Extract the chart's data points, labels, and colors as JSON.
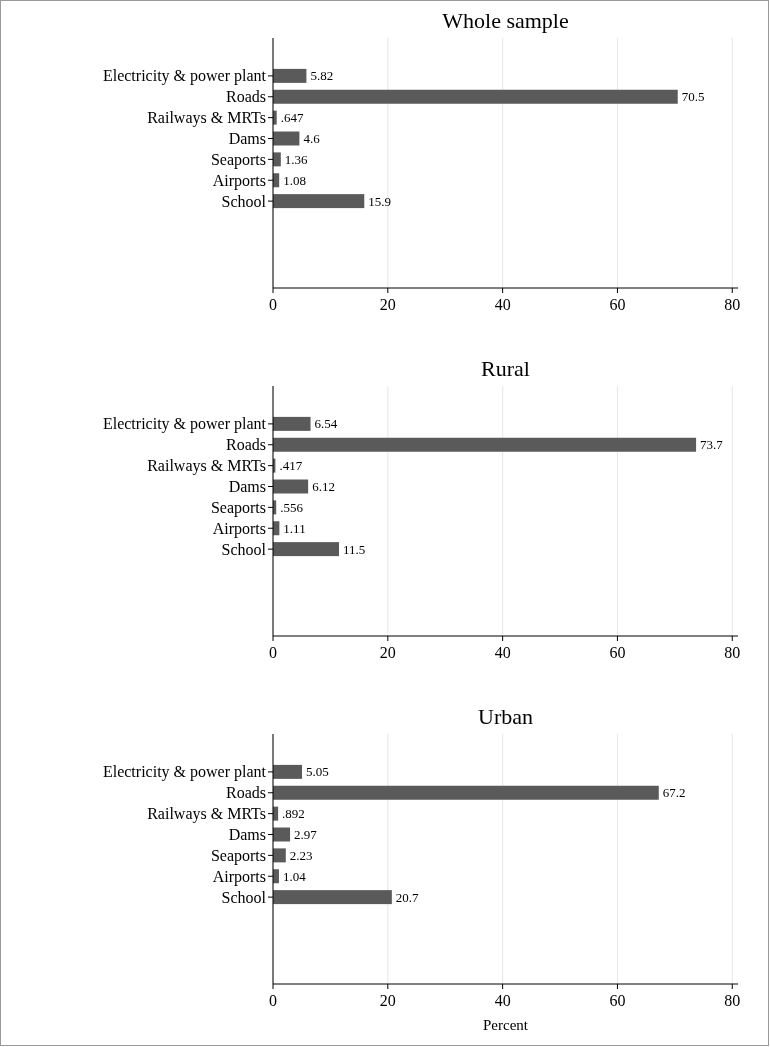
{
  "chart_data": [
    {
      "type": "bar",
      "orientation": "horizontal",
      "title": "Whole sample",
      "categories": [
        "Electricity & power plant",
        "Roads",
        "Railways & MRTs",
        "Dams",
        "Seaports",
        "Airports",
        "School"
      ],
      "values": [
        5.82,
        70.5,
        0.647,
        4.6,
        1.36,
        1.08,
        15.9
      ],
      "value_labels": [
        "5.82",
        "70.5",
        ".647",
        "4.6",
        "1.36",
        "1.08",
        "15.9"
      ],
      "color": "#5a5a5a",
      "xlim": [
        0,
        81
      ],
      "xticks": [
        0,
        20,
        40,
        60,
        80
      ],
      "grid": "x"
    },
    {
      "type": "bar",
      "orientation": "horizontal",
      "title": "Rural",
      "categories": [
        "Electricity & power plant",
        "Roads",
        "Railways & MRTs",
        "Dams",
        "Seaports",
        "Airports",
        "School"
      ],
      "values": [
        6.54,
        73.7,
        0.417,
        6.12,
        0.556,
        1.11,
        11.5
      ],
      "value_labels": [
        "6.54",
        "73.7",
        ".417",
        "6.12",
        ".556",
        "1.11",
        "11.5"
      ],
      "color": "#5a5a5a",
      "xlim": [
        0,
        81
      ],
      "xticks": [
        0,
        20,
        40,
        60,
        80
      ],
      "grid": "x"
    },
    {
      "type": "bar",
      "orientation": "horizontal",
      "title": "Urban",
      "xlabel": "Percent",
      "categories": [
        "Electricity & power plant",
        "Roads",
        "Railways & MRTs",
        "Dams",
        "Seaports",
        "Airports",
        "School"
      ],
      "values": [
        5.05,
        67.2,
        0.892,
        2.97,
        2.23,
        1.04,
        20.7
      ],
      "value_labels": [
        "5.05",
        "67.2",
        ".892",
        "2.97",
        "2.23",
        "1.04",
        "20.7"
      ],
      "color": "#5a5a5a",
      "xlim": [
        0,
        81
      ],
      "xticks": [
        0,
        20,
        40,
        60,
        80
      ],
      "grid": "x"
    }
  ]
}
